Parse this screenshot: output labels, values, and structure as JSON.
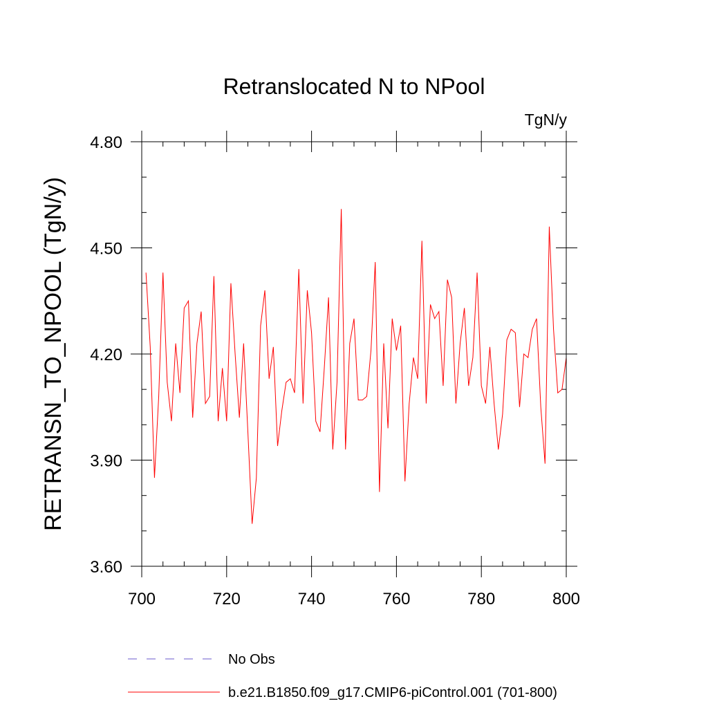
{
  "chart_data": {
    "type": "line",
    "title": "Retranslocated N to NPool",
    "units_label": "TgN/y",
    "ylabel": "RETRANSN_TO_NPOOL  (TgN/y)",
    "xlabel": "",
    "xlim": [
      700,
      800
    ],
    "ylim": [
      3.6,
      4.8
    ],
    "x_ticks": [
      700,
      720,
      740,
      760,
      780,
      800
    ],
    "x_tick_labels": [
      "700",
      "720",
      "740",
      "760",
      "780",
      "800"
    ],
    "y_ticks": [
      3.6,
      3.9,
      4.2,
      4.5,
      4.8
    ],
    "y_tick_labels": [
      "3.60",
      "3.90",
      "4.20",
      "4.50",
      "4.80"
    ],
    "grid": false,
    "legend_position": "bottom",
    "legend": [
      {
        "label": "No Obs",
        "color": "#6a5acd",
        "style": "dashed"
      },
      {
        "label": "b.e21.B1850.f09_g17.CMIP6-piControl.001 (701-800)",
        "color": "#ff0000",
        "style": "solid"
      }
    ],
    "series": [
      {
        "name": "b.e21.B1850.f09_g17.CMIP6-piControl.001 (701-800)",
        "color": "#ff0000",
        "x": [
          701,
          702,
          703,
          704,
          705,
          706,
          707,
          708,
          709,
          710,
          711,
          712,
          713,
          714,
          715,
          716,
          717,
          718,
          719,
          720,
          721,
          722,
          723,
          724,
          725,
          726,
          727,
          728,
          729,
          730,
          731,
          732,
          733,
          734,
          735,
          736,
          737,
          738,
          739,
          740,
          741,
          742,
          743,
          744,
          745,
          746,
          747,
          748,
          749,
          750,
          751,
          752,
          753,
          754,
          755,
          756,
          757,
          758,
          759,
          760,
          761,
          762,
          763,
          764,
          765,
          766,
          767,
          768,
          769,
          770,
          771,
          772,
          773,
          774,
          775,
          776,
          777,
          778,
          779,
          780,
          781,
          782,
          783,
          784,
          785,
          786,
          787,
          788,
          789,
          790,
          791,
          792,
          793,
          794,
          795,
          796,
          797,
          798,
          799,
          800
        ],
        "values": [
          4.43,
          4.22,
          3.85,
          4.08,
          4.43,
          4.12,
          4.01,
          4.23,
          4.09,
          4.33,
          4.35,
          4.02,
          4.23,
          4.32,
          4.06,
          4.08,
          4.42,
          4.01,
          4.16,
          4.01,
          4.4,
          4.2,
          4.02,
          4.23,
          3.98,
          3.72,
          3.85,
          4.28,
          4.38,
          4.13,
          4.22,
          3.94,
          4.04,
          4.12,
          4.13,
          4.09,
          4.44,
          4.06,
          4.38,
          4.26,
          4.01,
          3.98,
          4.16,
          4.36,
          3.93,
          4.12,
          4.61,
          3.93,
          4.23,
          4.3,
          4.07,
          4.07,
          4.08,
          4.21,
          4.46,
          3.81,
          4.23,
          3.99,
          4.3,
          4.21,
          4.28,
          3.84,
          4.06,
          4.19,
          4.13,
          4.52,
          4.06,
          4.34,
          4.3,
          4.32,
          4.11,
          4.41,
          4.36,
          4.06,
          4.23,
          4.33,
          4.11,
          4.19,
          4.43,
          4.11,
          4.06,
          4.22,
          4.06,
          3.93,
          4.03,
          4.24,
          4.27,
          4.26,
          4.05,
          4.2,
          4.19,
          4.27,
          4.3,
          4.05,
          3.89,
          4.56,
          4.27,
          4.09,
          4.1,
          4.19
        ]
      }
    ]
  }
}
